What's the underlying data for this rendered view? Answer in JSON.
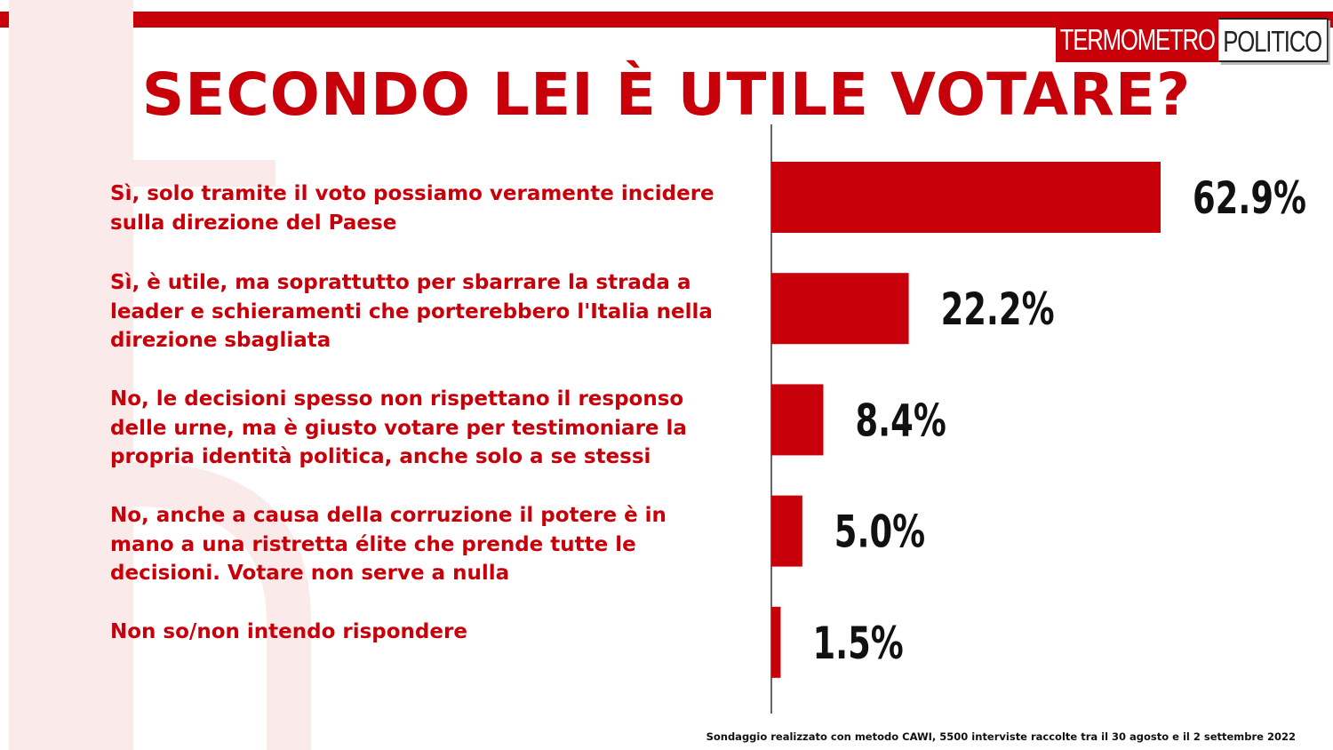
{
  "brand": {
    "logo_left": "TERMOMETRO",
    "logo_right": "POLITICO",
    "accent_color": "#c8000a"
  },
  "title": "SECONDO LEI È UTILE VOTARE?",
  "footnote": "Sondaggio realizzato con metodo CAWI, 5500 interviste raccolte tra il 30 agosto  e il 2 settembre 2022",
  "chart_data": {
    "type": "bar",
    "orientation": "horizontal",
    "title": "SECONDO LEI È UTILE VOTARE?",
    "categories": [
      "Sì, solo tramite il voto possiamo veramente incidere\nsulla direzione del Paese",
      "Sì, è utile, ma soprattutto per sbarrare la strada a\nleader e schieramenti che porterebbero l'Italia nella\ndirezione sbagliata",
      "No, le decisioni spesso non rispettano il responso\ndelle urne, ma è giusto votare per testimoniare la\npropria identità  politica, anche solo a se stessi",
      "No, anche a causa della corruzione il potere è in\nmano a una ristretta élite che prende tutte le\ndecisioni. Votare non serve a nulla",
      "Non so/non intendo rispondere"
    ],
    "values": [
      62.9,
      22.2,
      8.4,
      5.0,
      1.5
    ],
    "value_labels": [
      "62.9%",
      "22.2%",
      "8.4%",
      "5.0%",
      "1.5%"
    ],
    "unit": "%",
    "bar_color": "#c8000a",
    "grid": false,
    "legend": "none"
  }
}
